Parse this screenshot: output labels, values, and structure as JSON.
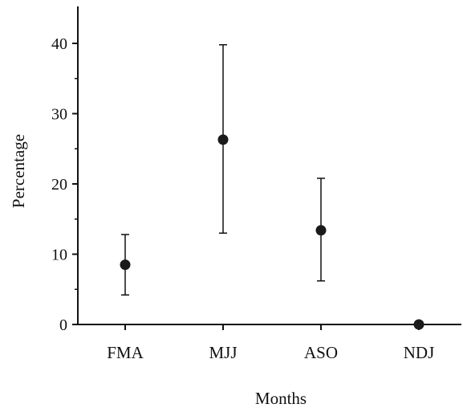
{
  "chart_data": {
    "type": "scatter",
    "title": "",
    "xlabel": "Months",
    "ylabel": "Percentage",
    "categories": [
      "FMA",
      "MJJ",
      "ASO",
      "NDJ"
    ],
    "series": [
      {
        "values": [
          8.5,
          26.3,
          13.4,
          0
        ],
        "error_low": [
          4.2,
          13.0,
          6.2,
          0
        ],
        "error_high": [
          12.8,
          39.8,
          20.8,
          0
        ]
      }
    ],
    "ylim": [
      0,
      45
    ],
    "yticks": [
      0,
      10,
      20,
      30,
      40
    ],
    "grid": false,
    "legend": "none",
    "colors": {
      "marker": "#1a1a1a",
      "axis": "#111111"
    }
  }
}
